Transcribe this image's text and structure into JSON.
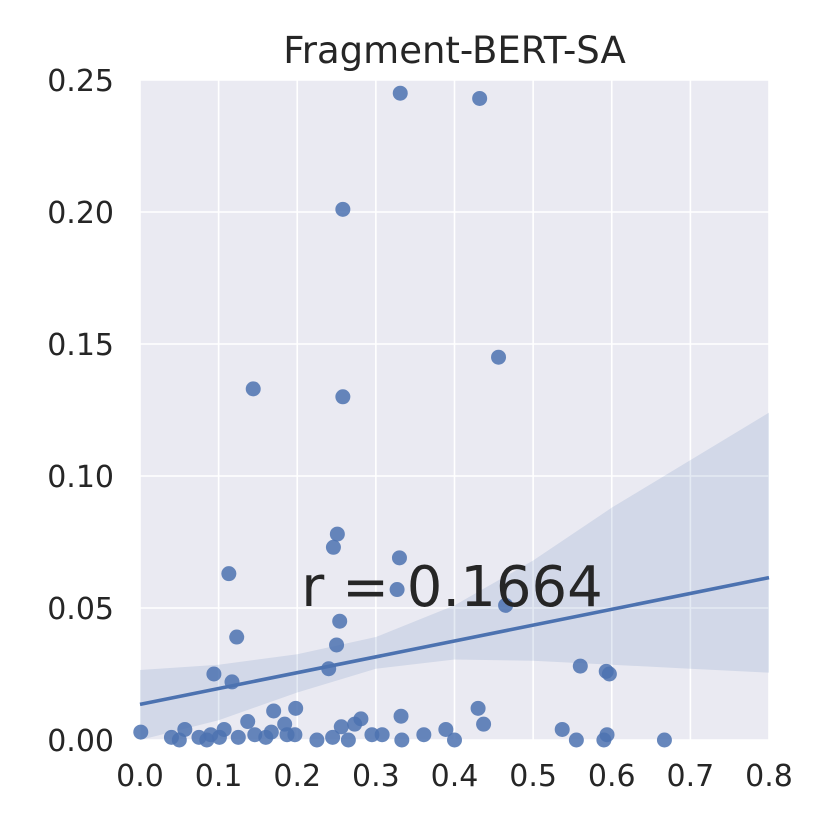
{
  "chart_data": {
    "type": "scatter",
    "title": "Fragment-BERT-SA",
    "xlabel": "",
    "ylabel": "",
    "xlim": [
      0.0,
      0.8
    ],
    "ylim": [
      0.0,
      0.25
    ],
    "xticks": [
      "0.0",
      "0.1",
      "0.2",
      "0.3",
      "0.4",
      "0.5",
      "0.6",
      "0.7",
      "0.8"
    ],
    "yticks": [
      "0.00",
      "0.05",
      "0.10",
      "0.15",
      "0.20",
      "0.25"
    ],
    "grid": true,
    "annotation": "r = 0.1664",
    "colors": {
      "background": "#eaeaf2",
      "grid": "#ffffff",
      "points": "#4c72b0",
      "line": "#4c72b0",
      "band": "#4c72b0"
    },
    "regression": {
      "x": [
        0.0,
        0.8
      ],
      "y": [
        0.0135,
        0.0615
      ]
    },
    "confidence_band": {
      "x": [
        0.0,
        0.1,
        0.2,
        0.3,
        0.4,
        0.5,
        0.6,
        0.7,
        0.8
      ],
      "upper": [
        0.0265,
        0.0285,
        0.0325,
        0.039,
        0.051,
        0.068,
        0.088,
        0.106,
        0.124
      ],
      "lower": [
        0.0,
        0.0075,
        0.018,
        0.027,
        0.0305,
        0.03,
        0.0285,
        0.027,
        0.0255
      ]
    },
    "points": [
      {
        "x": 0.331,
        "y": 0.245
      },
      {
        "x": 0.432,
        "y": 0.243
      },
      {
        "x": 0.258,
        "y": 0.201
      },
      {
        "x": 0.456,
        "y": 0.145
      },
      {
        "x": 0.144,
        "y": 0.133
      },
      {
        "x": 0.258,
        "y": 0.13
      },
      {
        "x": 0.251,
        "y": 0.078
      },
      {
        "x": 0.246,
        "y": 0.073
      },
      {
        "x": 0.33,
        "y": 0.069
      },
      {
        "x": 0.113,
        "y": 0.063
      },
      {
        "x": 0.327,
        "y": 0.057
      },
      {
        "x": 0.465,
        "y": 0.051
      },
      {
        "x": 0.254,
        "y": 0.045
      },
      {
        "x": 0.123,
        "y": 0.039
      },
      {
        "x": 0.25,
        "y": 0.036
      },
      {
        "x": 0.24,
        "y": 0.027
      },
      {
        "x": 0.56,
        "y": 0.028
      },
      {
        "x": 0.593,
        "y": 0.026
      },
      {
        "x": 0.597,
        "y": 0.025
      },
      {
        "x": 0.094,
        "y": 0.025
      },
      {
        "x": 0.117,
        "y": 0.022
      },
      {
        "x": 0.198,
        "y": 0.012
      },
      {
        "x": 0.17,
        "y": 0.011
      },
      {
        "x": 0.43,
        "y": 0.012
      },
      {
        "x": 0.332,
        "y": 0.009
      },
      {
        "x": 0.281,
        "y": 0.008
      },
      {
        "x": 0.137,
        "y": 0.007
      },
      {
        "x": 0.184,
        "y": 0.006
      },
      {
        "x": 0.273,
        "y": 0.006
      },
      {
        "x": 0.256,
        "y": 0.005
      },
      {
        "x": 0.437,
        "y": 0.006
      },
      {
        "x": 0.107,
        "y": 0.004
      },
      {
        "x": 0.057,
        "y": 0.004
      },
      {
        "x": 0.389,
        "y": 0.004
      },
      {
        "x": 0.537,
        "y": 0.004
      },
      {
        "x": 0.001,
        "y": 0.003
      },
      {
        "x": 0.09,
        "y": 0.002
      },
      {
        "x": 0.146,
        "y": 0.002
      },
      {
        "x": 0.167,
        "y": 0.003
      },
      {
        "x": 0.187,
        "y": 0.002
      },
      {
        "x": 0.197,
        "y": 0.002
      },
      {
        "x": 0.245,
        "y": 0.001
      },
      {
        "x": 0.295,
        "y": 0.002
      },
      {
        "x": 0.308,
        "y": 0.002
      },
      {
        "x": 0.361,
        "y": 0.002
      },
      {
        "x": 0.594,
        "y": 0.002
      },
      {
        "x": 0.04,
        "y": 0.001
      },
      {
        "x": 0.075,
        "y": 0.001
      },
      {
        "x": 0.101,
        "y": 0.001
      },
      {
        "x": 0.125,
        "y": 0.001
      },
      {
        "x": 0.16,
        "y": 0.001
      },
      {
        "x": 0.225,
        "y": 0.0
      },
      {
        "x": 0.265,
        "y": 0.0
      },
      {
        "x": 0.333,
        "y": 0.0
      },
      {
        "x": 0.4,
        "y": 0.0
      },
      {
        "x": 0.555,
        "y": 0.0
      },
      {
        "x": 0.59,
        "y": 0.0
      },
      {
        "x": 0.667,
        "y": 0.0
      },
      {
        "x": 0.05,
        "y": 0.0
      },
      {
        "x": 0.085,
        "y": 0.0
      }
    ]
  }
}
